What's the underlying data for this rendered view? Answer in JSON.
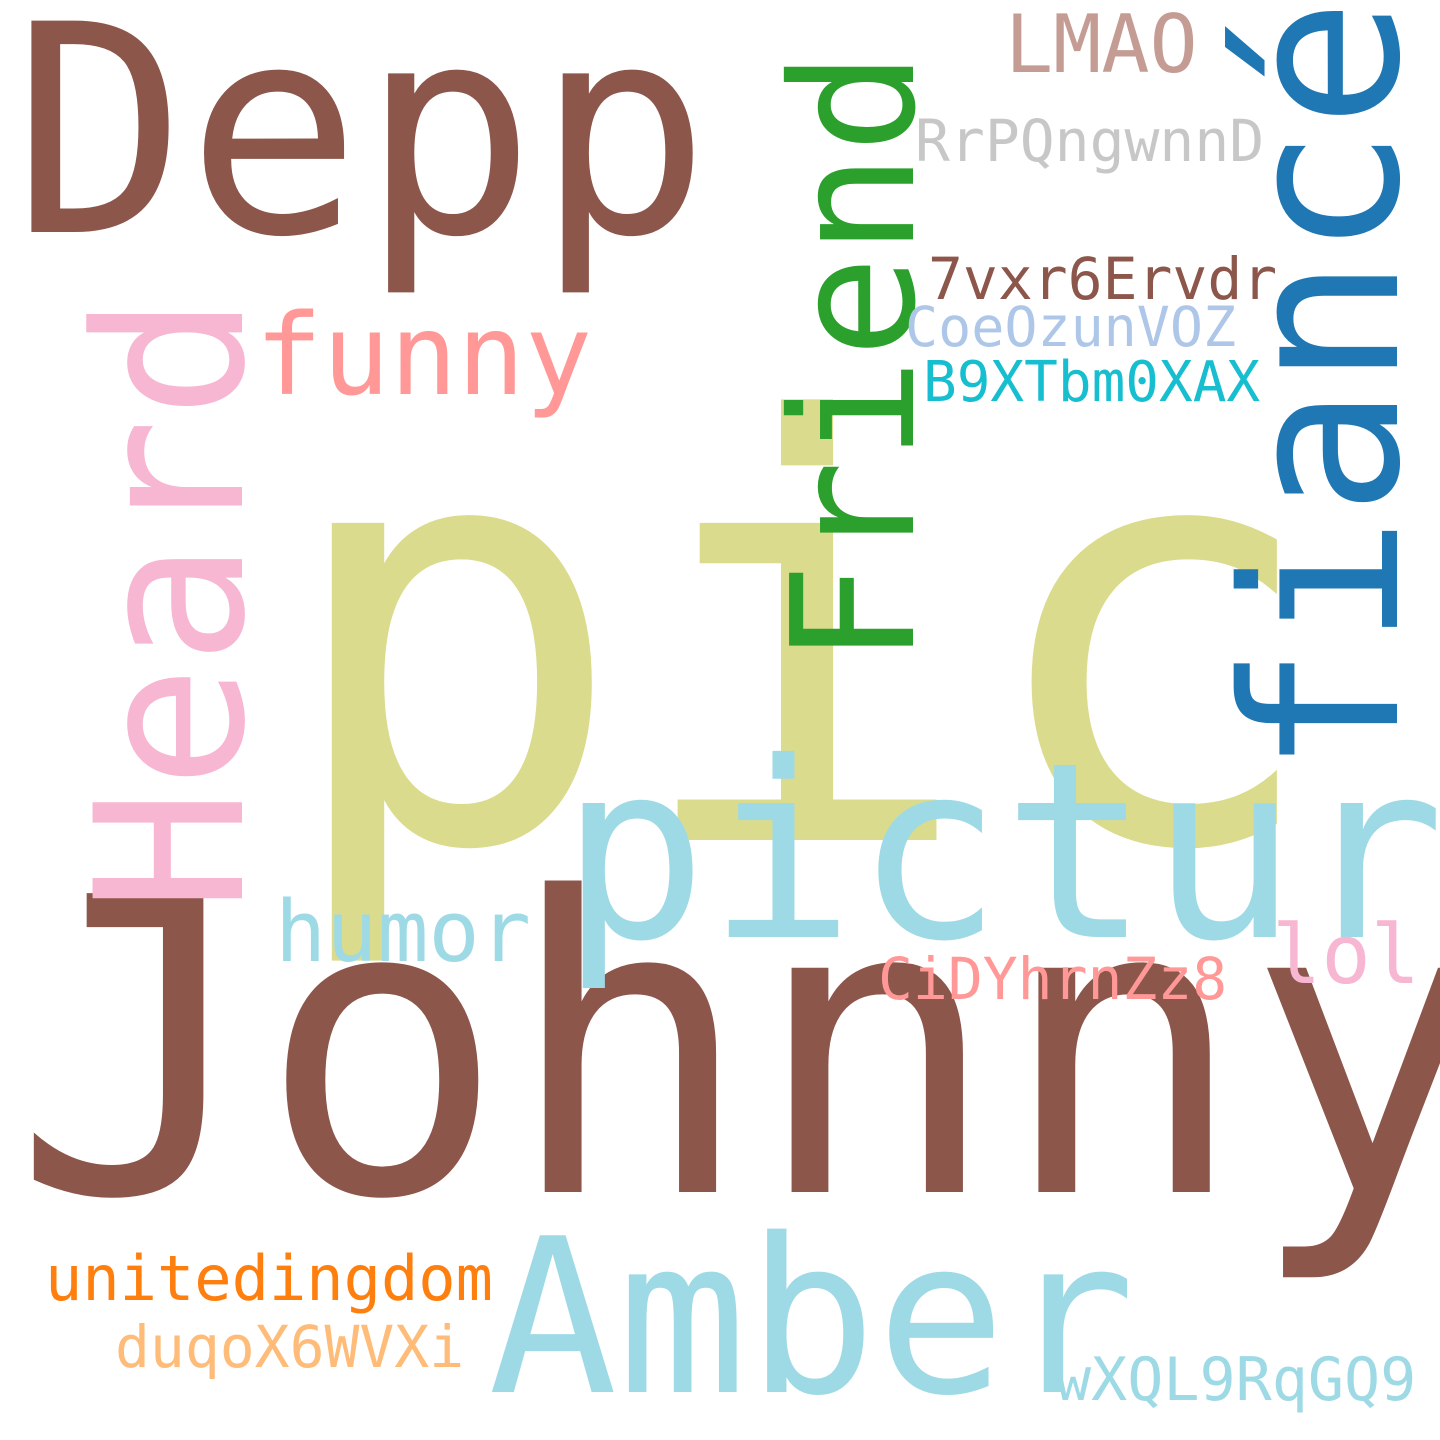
{
  "background": "#ffffff",
  "words": [
    {
      "id": "depp",
      "text": "Depp",
      "color": "#8c564b",
      "orientation": "horizontal"
    },
    {
      "id": "pic",
      "text": "pic",
      "color": "#dbdb8d",
      "orientation": "horizontal"
    },
    {
      "id": "johnny",
      "text": "Johnny",
      "color": "#8c564b",
      "orientation": "horizontal"
    },
    {
      "id": "picture",
      "text": "picture",
      "color": "#9edae5",
      "orientation": "horizontal"
    },
    {
      "id": "amber",
      "text": "Amber",
      "color": "#9edae5",
      "orientation": "horizontal"
    },
    {
      "id": "heard",
      "text": "Heard",
      "color": "#f7b6d2",
      "orientation": "vertical"
    },
    {
      "id": "friend",
      "text": "Friend",
      "color": "#2ca02c",
      "orientation": "vertical"
    },
    {
      "id": "fiance",
      "text": "fiancé",
      "color": "#1f77b4",
      "orientation": "vertical"
    },
    {
      "id": "funny",
      "text": "funny",
      "color": "#ff9896",
      "orientation": "horizontal"
    },
    {
      "id": "humor",
      "text": "humor",
      "color": "#9edae5",
      "orientation": "horizontal"
    },
    {
      "id": "lmao",
      "text": "LMAO",
      "color": "#c49c94",
      "orientation": "horizontal"
    },
    {
      "id": "rrp",
      "text": "RrPQngwnnD",
      "color": "#c7c7c7",
      "orientation": "horizontal"
    },
    {
      "id": "vxr",
      "text": "7vxr6Ervdr",
      "color": "#8c564b",
      "orientation": "horizontal"
    },
    {
      "id": "coe",
      "text": "CoeOzunVOZ",
      "color": "#aec7e8",
      "orientation": "horizontal"
    },
    {
      "id": "b9x",
      "text": "B9XTbm0XAX",
      "color": "#17becf",
      "orientation": "horizontal"
    },
    {
      "id": "cidy",
      "text": "CiDYhrnZz8",
      "color": "#ff9896",
      "orientation": "horizontal"
    },
    {
      "id": "lol",
      "text": "lol",
      "color": "#f7b6d2",
      "orientation": "horizontal"
    },
    {
      "id": "united",
      "text": "unitedingdom",
      "color": "#ff7f0e",
      "orientation": "horizontal"
    },
    {
      "id": "duqo",
      "text": "duqoX6WVXi",
      "color": "#ffbb78",
      "orientation": "horizontal"
    },
    {
      "id": "wxql",
      "text": "wXQL9RqGQ9",
      "color": "#9edae5",
      "orientation": "horizontal"
    }
  ]
}
